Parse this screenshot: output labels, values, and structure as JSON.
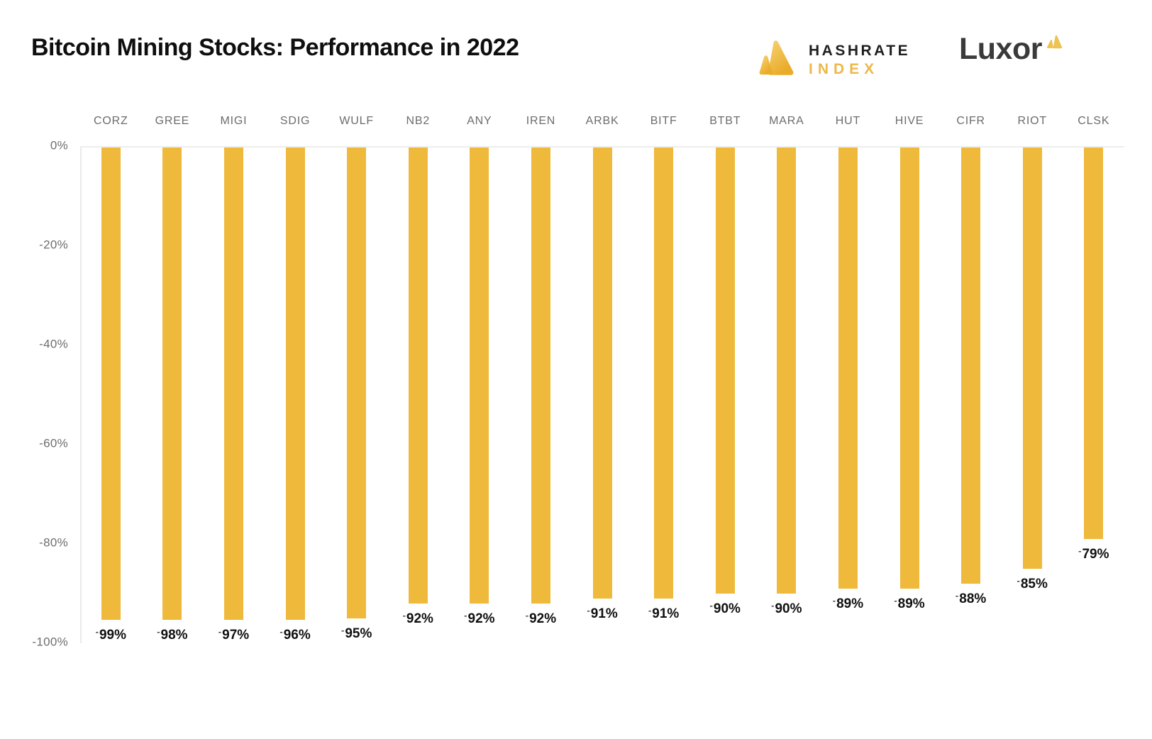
{
  "header": {
    "title": "Bitcoin Mining Stocks: Performance in 2022",
    "hashrate_logo": {
      "line1": "HASHRATE",
      "line2": "INDEX"
    },
    "luxor_logo": {
      "text": "Luxor"
    }
  },
  "colors": {
    "bar": "#efb93c",
    "bar_gradient_light": "#f6cf6e",
    "bar_gradient_dark": "#e9ab28",
    "title_text": "#0e0e0e",
    "axis_text": "#6e6e6e",
    "value_text": "#101010",
    "gridline": "#ededed",
    "hashrate_dark": "#1f1f1f",
    "hashrate_gold": "#ecb84a",
    "luxor_dark": "#3a3a3a",
    "luxor_gold": "#eec253"
  },
  "chart_data": {
    "type": "bar",
    "title": "Bitcoin Mining Stocks: Performance in 2022",
    "xlabel": "",
    "ylabel": "",
    "categories": [
      "CORZ",
      "GREE",
      "MIGI",
      "SDIG",
      "WULF",
      "NB2",
      "ANY",
      "IREN",
      "ARBK",
      "BITF",
      "BTBT",
      "MARA",
      "HUT",
      "HIVE",
      "CIFR",
      "RIOT",
      "CLSK"
    ],
    "values": [
      -99,
      -98,
      -97,
      -96,
      -95,
      -92,
      -92,
      -92,
      -91,
      -91,
      -90,
      -90,
      -89,
      -89,
      -88,
      -85,
      -79
    ],
    "value_labels": [
      "-99%",
      "-98%",
      "-97%",
      "-96%",
      "-95%",
      "-92%",
      "-92%",
      "-92%",
      "-91%",
      "-91%",
      "-90%",
      "-90%",
      "-89%",
      "-89%",
      "-88%",
      "-85%",
      "-79%"
    ],
    "yticks": [
      0,
      -20,
      -40,
      -60,
      -80,
      -100
    ],
    "ytick_labels": [
      "0%",
      "-20%",
      "-40%",
      "-60%",
      "-80%",
      "-100%"
    ],
    "ylim": [
      0,
      -100
    ],
    "grid": "zero-line-only",
    "legend": "none",
    "bar_color": "#efb93c"
  }
}
